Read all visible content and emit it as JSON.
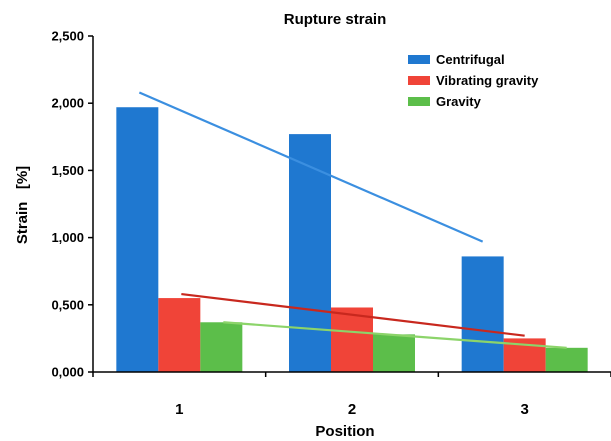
{
  "chart_data": {
    "type": "bar",
    "title": "Rupture strain",
    "xlabel": "Position",
    "ylabel": "Strain   [%]",
    "categories": [
      "1",
      "2",
      "3"
    ],
    "ylim": [
      0,
      2.5
    ],
    "yticks": [
      0,
      0.5,
      1.0,
      1.5,
      2.0,
      2.5
    ],
    "ytick_labels": [
      "0,000",
      "0,500",
      "1,000",
      "1,500",
      "2,000",
      "2,500"
    ],
    "legend_position": "top-right",
    "grid": false,
    "series": [
      {
        "name": "Centrifugal",
        "color": "#1F78D0",
        "values": [
          1.97,
          1.77,
          0.86
        ],
        "trendline": {
          "color": "#3B8FE0",
          "start": 2.08,
          "end": 0.97
        }
      },
      {
        "name": "Vibrating gravity",
        "color": "#F04438",
        "values": [
          0.55,
          0.48,
          0.25
        ],
        "trendline": {
          "color": "#C8281E",
          "start": 0.58,
          "end": 0.27
        }
      },
      {
        "name": "Gravity",
        "color": "#5CBE4A",
        "values": [
          0.37,
          0.28,
          0.18
        ],
        "trendline": {
          "color": "#8CD46A",
          "start": 0.37,
          "end": 0.18
        }
      }
    ]
  }
}
